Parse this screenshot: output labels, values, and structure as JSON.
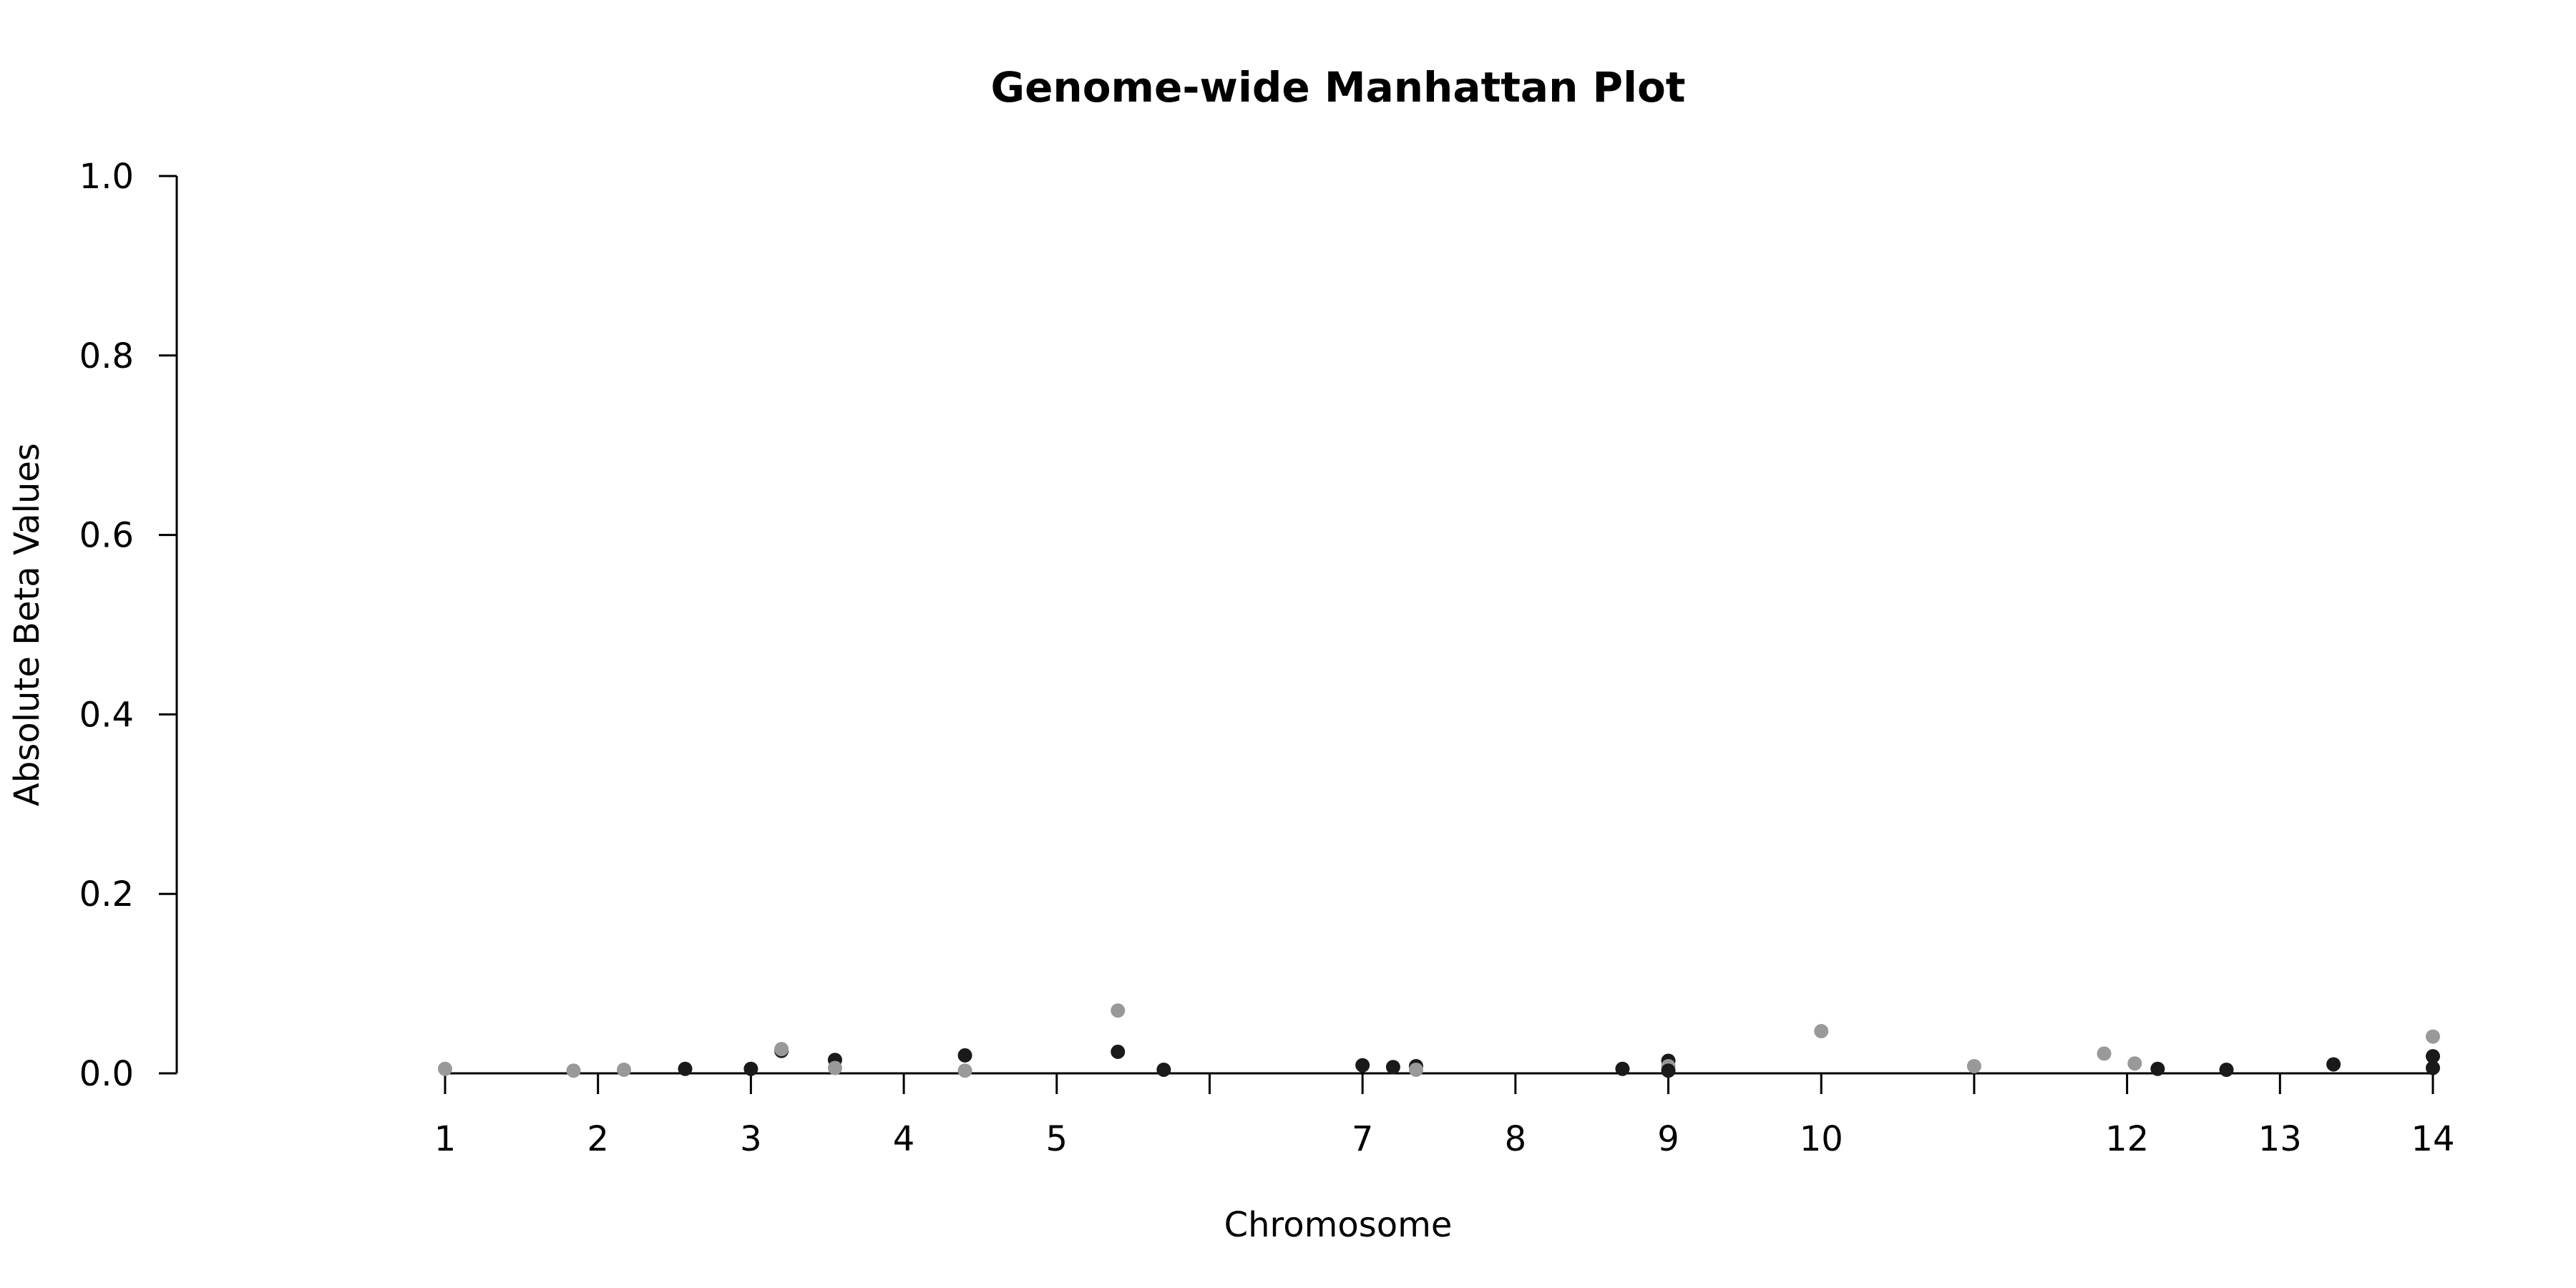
{
  "chart_data": {
    "type": "scatter",
    "title": "Genome-wide Manhattan Plot",
    "xlabel": "Chromosome",
    "ylabel": "Absolute Beta Values",
    "ylim": [
      0.0,
      1.0
    ],
    "yticks": [
      "0.0",
      "0.2",
      "0.4",
      "0.6",
      "0.8",
      "1.0"
    ],
    "xlim": [
      1,
      14
    ],
    "xticks": [
      {
        "position": 1,
        "label": "1"
      },
      {
        "position": 2,
        "label": "2"
      },
      {
        "position": 3,
        "label": "3"
      },
      {
        "position": 4,
        "label": "4"
      },
      {
        "position": 5,
        "label": "5"
      },
      {
        "position": 6,
        "label": ""
      },
      {
        "position": 7,
        "label": "7"
      },
      {
        "position": 8,
        "label": "8"
      },
      {
        "position": 9,
        "label": "9"
      },
      {
        "position": 10,
        "label": "10"
      },
      {
        "position": 11,
        "label": ""
      },
      {
        "position": 12,
        "label": "12"
      },
      {
        "position": 13,
        "label": "13"
      },
      {
        "position": 14,
        "label": "14"
      }
    ],
    "grid": false,
    "colors": {
      "dark": "#1a1a1a",
      "light": "#999999"
    },
    "points": [
      {
        "x": 1.0,
        "y": 0.005,
        "color": "light"
      },
      {
        "x": 1.84,
        "y": 0.003,
        "color": "light"
      },
      {
        "x": 2.17,
        "y": 0.004,
        "color": "light"
      },
      {
        "x": 2.57,
        "y": 0.005,
        "color": "dark"
      },
      {
        "x": 3.0,
        "y": 0.005,
        "color": "dark"
      },
      {
        "x": 3.2,
        "y": 0.025,
        "color": "dark"
      },
      {
        "x": 3.2,
        "y": 0.027,
        "color": "light"
      },
      {
        "x": 3.55,
        "y": 0.015,
        "color": "dark"
      },
      {
        "x": 3.55,
        "y": 0.006,
        "color": "light"
      },
      {
        "x": 4.4,
        "y": 0.02,
        "color": "dark"
      },
      {
        "x": 4.4,
        "y": 0.003,
        "color": "light"
      },
      {
        "x": 5.4,
        "y": 0.07,
        "color": "light"
      },
      {
        "x": 5.4,
        "y": 0.024,
        "color": "dark"
      },
      {
        "x": 5.7,
        "y": 0.004,
        "color": "dark"
      },
      {
        "x": 7.0,
        "y": 0.009,
        "color": "dark"
      },
      {
        "x": 7.2,
        "y": 0.007,
        "color": "dark"
      },
      {
        "x": 7.35,
        "y": 0.008,
        "color": "dark"
      },
      {
        "x": 7.35,
        "y": 0.004,
        "color": "light"
      },
      {
        "x": 8.7,
        "y": 0.005,
        "color": "dark"
      },
      {
        "x": 9.0,
        "y": 0.014,
        "color": "dark"
      },
      {
        "x": 9.0,
        "y": 0.008,
        "color": "light"
      },
      {
        "x": 9.0,
        "y": 0.003,
        "color": "dark"
      },
      {
        "x": 10.0,
        "y": 0.047,
        "color": "light"
      },
      {
        "x": 11.0,
        "y": 0.008,
        "color": "light"
      },
      {
        "x": 11.85,
        "y": 0.022,
        "color": "light"
      },
      {
        "x": 12.05,
        "y": 0.011,
        "color": "light"
      },
      {
        "x": 12.2,
        "y": 0.005,
        "color": "dark"
      },
      {
        "x": 12.65,
        "y": 0.004,
        "color": "dark"
      },
      {
        "x": 13.35,
        "y": 0.01,
        "color": "dark"
      },
      {
        "x": 14.0,
        "y": 0.041,
        "color": "light"
      },
      {
        "x": 14.0,
        "y": 0.019,
        "color": "dark"
      },
      {
        "x": 14.0,
        "y": 0.006,
        "color": "dark"
      }
    ]
  }
}
